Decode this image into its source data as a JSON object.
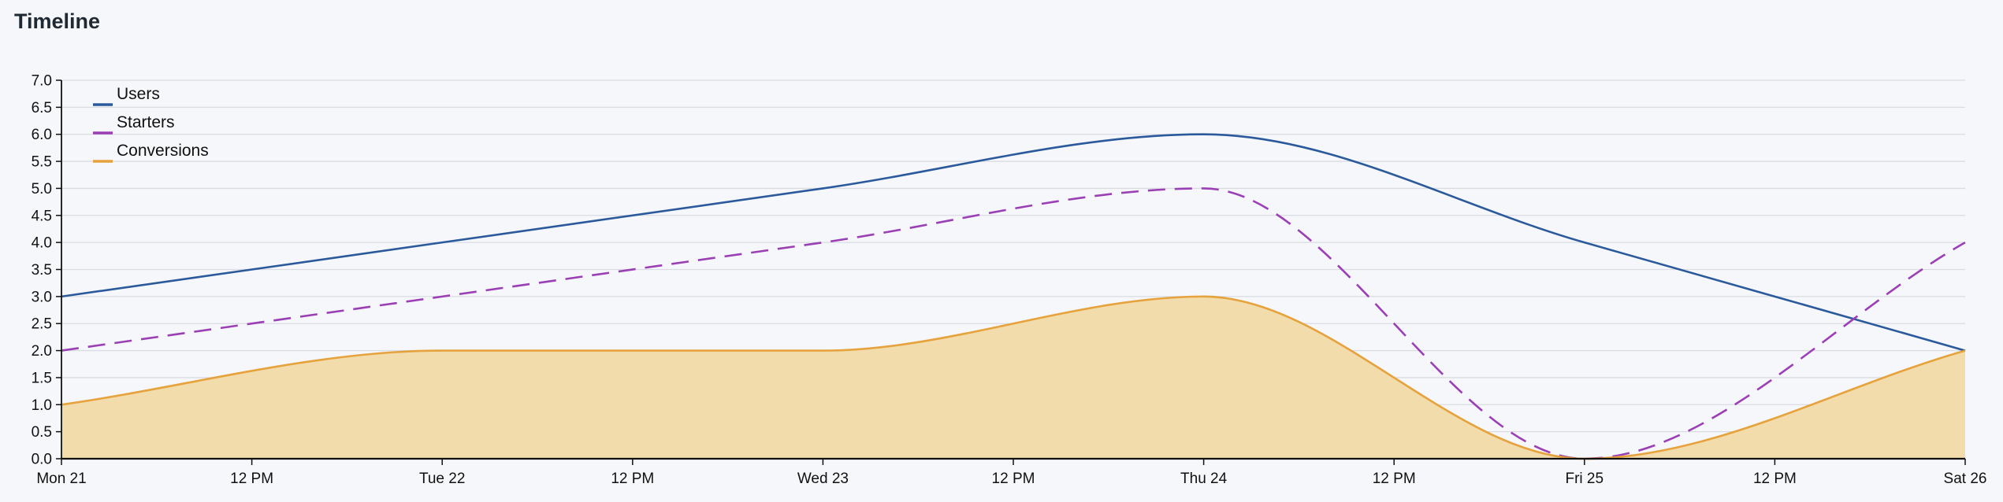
{
  "page": {
    "title": "Timeline"
  },
  "chart_data": {
    "type": "line",
    "x": [
      "Mon 21",
      "Tue 22",
      "Wed 23",
      "Thu 24",
      "Fri 25",
      "Sat 26"
    ],
    "x_tick_labels": [
      "Mon 21",
      "12 PM",
      "Tue 22",
      "12 PM",
      "Wed 23",
      "12 PM",
      "Thu 24",
      "12 PM",
      "Fri 25",
      "12 PM",
      "Sat 26"
    ],
    "ylim": [
      0,
      7
    ],
    "y_tick_labels": [
      "0.0",
      "0.5",
      "1.0",
      "1.5",
      "2.0",
      "2.5",
      "3.0",
      "3.5",
      "4.0",
      "4.5",
      "5.0",
      "5.5",
      "6.0",
      "6.5",
      "7.0"
    ],
    "grid": true,
    "legend_position": "top-left",
    "series": [
      {
        "name": "Users",
        "values": [
          3,
          4,
          5,
          6,
          4,
          2
        ],
        "color": "#2a5a9b",
        "style": "solid",
        "fill": false
      },
      {
        "name": "Starters",
        "values": [
          2,
          3,
          4,
          5,
          0,
          4
        ],
        "color": "#9b3fb5",
        "style": "dashed",
        "fill": false
      },
      {
        "name": "Conversions",
        "values": [
          1,
          2,
          2,
          3,
          0,
          2
        ],
        "color": "#e6a23c",
        "style": "solid",
        "fill": true,
        "fill_color": "#f2dcab"
      }
    ]
  }
}
